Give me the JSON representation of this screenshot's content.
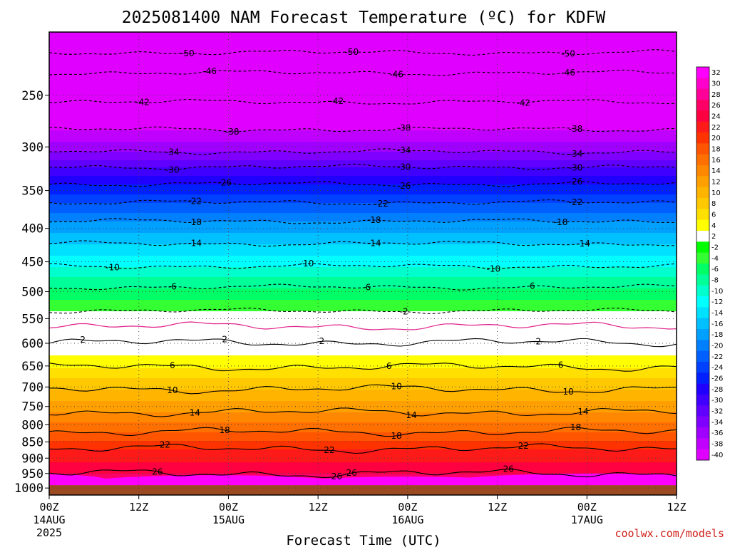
{
  "title": "2025081400 NAM Forecast Temperature (ºC) for KDFW",
  "xlabel": "Forecast Time (UTC)",
  "credit": "coolwx.com/models",
  "colors": {
    "ground": "#9b4a22",
    "freezing_line": "#e0208a",
    "grid": "#444444"
  },
  "chart_data": {
    "type": "heatmap",
    "title": "2025081400 NAM Forecast Temperature (ºC) for KDFW",
    "xlabel": "Forecast Time (UTC)",
    "ylabel": "",
    "x_range_hours": [
      0,
      84
    ],
    "y_range_hPa": [
      200,
      1025
    ],
    "y_scale": "log-pressure, inverted",
    "y_ticks": [
      250,
      300,
      350,
      400,
      450,
      500,
      550,
      600,
      650,
      700,
      750,
      800,
      850,
      900,
      950,
      1000
    ],
    "x_ticks": [
      {
        "hour": 0,
        "label": "00Z",
        "sub1": "14AUG",
        "sub2": "2025"
      },
      {
        "hour": 12,
        "label": "12Z",
        "sub1": "",
        "sub2": ""
      },
      {
        "hour": 24,
        "label": "00Z",
        "sub1": "15AUG",
        "sub2": ""
      },
      {
        "hour": 36,
        "label": "12Z",
        "sub1": "",
        "sub2": ""
      },
      {
        "hour": 48,
        "label": "00Z",
        "sub1": "16AUG",
        "sub2": ""
      },
      {
        "hour": 60,
        "label": "12Z",
        "sub1": "",
        "sub2": ""
      },
      {
        "hour": 72,
        "label": "00Z",
        "sub1": "17AUG",
        "sub2": ""
      },
      {
        "hour": 84,
        "label": "12Z",
        "sub1": "",
        "sub2": ""
      }
    ],
    "grid": true,
    "ground_pressure_hPa": 990,
    "colorbar": {
      "placement": "right",
      "levels": [
        32,
        30,
        28,
        26,
        24,
        22,
        20,
        18,
        16,
        14,
        12,
        10,
        8,
        6,
        4,
        2,
        -2,
        -4,
        -6,
        -8,
        -10,
        -12,
        -14,
        -16,
        -18,
        -20,
        -22,
        -24,
        -26,
        -28,
        -30,
        -32,
        -34,
        -36,
        -38,
        -40
      ],
      "colors": [
        "#ff00ff",
        "#ff00cc",
        "#ff0099",
        "#ff0066",
        "#ff0040",
        "#ff1a1a",
        "#ff3300",
        "#ff5500",
        "#ff7000",
        "#ff8800",
        "#ffa000",
        "#ffb400",
        "#ffc800",
        "#ffe000",
        "#ffff00",
        "#ffffff",
        "#00ff00",
        "#33ff33",
        "#00ff66",
        "#00ff99",
        "#00ffcc",
        "#00ffff",
        "#00e0ff",
        "#00c0ff",
        "#00a0ff",
        "#0080ff",
        "#0060ff",
        "#0040ff",
        "#0020ff",
        "#2000ff",
        "#4000ff",
        "#6000ff",
        "#8000ff",
        "#a000ff",
        "#c000ff",
        "#e000ff"
      ]
    },
    "isotherms": [
      {
        "value": -50,
        "pressure_hPa": 215,
        "labels": [
          {
            "hour": 18.5,
            "text": "-50"
          },
          {
            "hour": 40.5,
            "text": "-50"
          },
          {
            "hour": 69.5,
            "text": "-50"
          }
        ]
      },
      {
        "value": -46,
        "pressure_hPa": 231,
        "labels": [
          {
            "hour": 21.5,
            "text": "-46"
          },
          {
            "hour": 46.5,
            "text": "-46"
          },
          {
            "hour": 69.5,
            "text": "-46"
          }
        ]
      },
      {
        "value": -42,
        "pressure_hPa": 256,
        "labels": [
          {
            "hour": 12.5,
            "text": "-42"
          },
          {
            "hour": 38.5,
            "text": "-42"
          },
          {
            "hour": 63.5,
            "text": "-42"
          }
        ]
      },
      {
        "value": -38,
        "pressure_hPa": 282,
        "labels": [
          {
            "hour": 24.5,
            "text": "-38"
          },
          {
            "hour": 47.5,
            "text": "-38"
          },
          {
            "hour": 70.5,
            "text": "-38"
          }
        ]
      },
      {
        "value": -34,
        "pressure_hPa": 305,
        "labels": [
          {
            "hour": 16.5,
            "text": "-34"
          },
          {
            "hour": 47.5,
            "text": "-34"
          },
          {
            "hour": 70.5,
            "text": "-34"
          }
        ]
      },
      {
        "value": -30,
        "pressure_hPa": 322,
        "labels": [
          {
            "hour": 16.5,
            "text": "-30"
          },
          {
            "hour": 47.5,
            "text": "-30"
          },
          {
            "hour": 70.5,
            "text": "-30"
          }
        ]
      },
      {
        "value": -26,
        "pressure_hPa": 342,
        "labels": [
          {
            "hour": 23.5,
            "text": "-26"
          },
          {
            "hour": 47.5,
            "text": "-26"
          },
          {
            "hour": 70.5,
            "text": "-26"
          }
        ]
      },
      {
        "value": -22,
        "pressure_hPa": 365,
        "labels": [
          {
            "hour": 19.5,
            "text": "-22"
          },
          {
            "hour": 44.5,
            "text": "-22"
          },
          {
            "hour": 70.5,
            "text": "-22"
          }
        ]
      },
      {
        "value": -18,
        "pressure_hPa": 390,
        "labels": [
          {
            "hour": 19.5,
            "text": "-18"
          },
          {
            "hour": 43.5,
            "text": "-18"
          },
          {
            "hour": 68.5,
            "text": "-18"
          }
        ]
      },
      {
        "value": -14,
        "pressure_hPa": 422,
        "labels": [
          {
            "hour": 19.5,
            "text": "-14"
          },
          {
            "hour": 43.5,
            "text": "-14"
          },
          {
            "hour": 71.5,
            "text": "-14"
          }
        ]
      },
      {
        "value": -10,
        "pressure_hPa": 457,
        "labels": [
          {
            "hour": 8.5,
            "text": "-10"
          },
          {
            "hour": 34.5,
            "text": "-10"
          },
          {
            "hour": 59.5,
            "text": "-10"
          }
        ]
      },
      {
        "value": -6,
        "pressure_hPa": 492,
        "labels": [
          {
            "hour": 16.5,
            "text": "-6"
          },
          {
            "hour": 42.5,
            "text": "-6"
          },
          {
            "hour": 64.5,
            "text": "-6"
          }
        ]
      },
      {
        "value": -2,
        "pressure_hPa": 535,
        "labels": [
          {
            "hour": 47.5,
            "text": "-2"
          }
        ]
      },
      {
        "value": 2,
        "pressure_hPa": 598,
        "labels": [
          {
            "hour": 4.5,
            "text": "2"
          },
          {
            "hour": 23.5,
            "text": "2"
          },
          {
            "hour": 36.5,
            "text": "2"
          },
          {
            "hour": 65.5,
            "text": "2"
          }
        ]
      },
      {
        "value": 6,
        "pressure_hPa": 652,
        "labels": [
          {
            "hour": 16.5,
            "text": "6"
          },
          {
            "hour": 45.5,
            "text": "6"
          },
          {
            "hour": 68.5,
            "text": "6"
          }
        ]
      },
      {
        "value": 10,
        "pressure_hPa": 705,
        "labels": [
          {
            "hour": 16.5,
            "text": "10"
          },
          {
            "hour": 46.5,
            "text": "10"
          },
          {
            "hour": 69.5,
            "text": "10"
          }
        ]
      },
      {
        "value": 14,
        "pressure_hPa": 765,
        "labels": [
          {
            "hour": 19.5,
            "text": "14"
          },
          {
            "hour": 48.5,
            "text": "14"
          },
          {
            "hour": 71.5,
            "text": "14"
          }
        ]
      },
      {
        "value": 18,
        "pressure_hPa": 820,
        "labels": [
          {
            "hour": 23.5,
            "text": "18"
          },
          {
            "hour": 46.5,
            "text": "18"
          },
          {
            "hour": 70.5,
            "text": "18"
          }
        ]
      },
      {
        "value": 22,
        "pressure_hPa": 870,
        "labels": [
          {
            "hour": 15.5,
            "text": "22"
          },
          {
            "hour": 37.5,
            "text": "22"
          },
          {
            "hour": 63.5,
            "text": "22"
          }
        ]
      },
      {
        "value": 26,
        "pressure_hPa": 950,
        "labels": [
          {
            "hour": 14.5,
            "text": "26"
          },
          {
            "hour": 38.5,
            "text": "26"
          },
          {
            "hour": 40.5,
            "text": "26"
          },
          {
            "hour": 61.5,
            "text": "26"
          }
        ]
      }
    ]
  }
}
